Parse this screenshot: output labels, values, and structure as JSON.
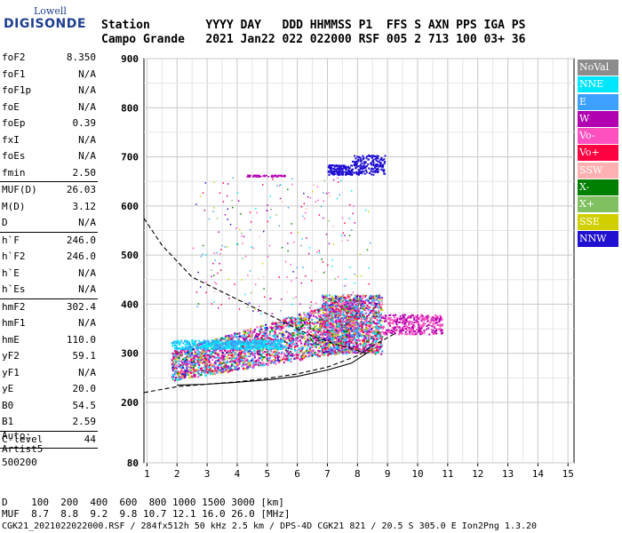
{
  "logo": {
    "line1": "Lowell",
    "line2": "DIGISONDE"
  },
  "header": {
    "labels": "Station        YYYY DAY   DDD HHMMSS P1  FFS S AXN PPS IGA PS",
    "values": "Campo Grande   2021 Jan22 022 022000 RSF 005 2 713 100 03+ 36"
  },
  "params": [
    {
      "label": "foF2",
      "value": "8.350"
    },
    {
      "label": "foF1",
      "value": "N/A"
    },
    {
      "label": "foF1p",
      "value": "N/A"
    },
    {
      "label": "foE",
      "value": "N/A"
    },
    {
      "label": "foEp",
      "value": "0.39"
    },
    {
      "label": "fxI",
      "value": "N/A"
    },
    {
      "label": "foEs",
      "value": "N/A"
    },
    {
      "label": "fmin",
      "value": "2.50",
      "sep_after": true
    },
    {
      "label": "MUF(D)",
      "value": "26.03"
    },
    {
      "label": "M(D)",
      "value": "3.12"
    },
    {
      "label": "D",
      "value": "N/A",
      "sep_after": true
    },
    {
      "label": "h`F",
      "value": "246.0"
    },
    {
      "label": "h`F2",
      "value": "246.0"
    },
    {
      "label": "h`E",
      "value": "N/A"
    },
    {
      "label": "h`Es",
      "value": "N/A",
      "sep_after": true
    },
    {
      "label": "hmF2",
      "value": "302.4"
    },
    {
      "label": "hmF1",
      "value": "N/A"
    },
    {
      "label": "hmE",
      "value": "110.0"
    },
    {
      "label": "yF2",
      "value": "59.1"
    },
    {
      "label": "yF1",
      "value": "N/A"
    },
    {
      "label": "yE",
      "value": "20.0"
    },
    {
      "label": "B0",
      "value": "54.5"
    },
    {
      "label": "B1",
      "value": "2.59",
      "sep_after": true
    },
    {
      "label": "C-level",
      "value": "44",
      "sep_after": true
    }
  ],
  "auto": [
    "Auto:",
    "Artist5",
    "500200"
  ],
  "legend": [
    {
      "label": "NoVal",
      "color": "#8c8c8c"
    },
    {
      "label": "NNE",
      "color": "#00e6ff"
    },
    {
      "label": "E",
      "color": "#3ca0ff"
    },
    {
      "label": "W",
      "color": "#b000b0"
    },
    {
      "label": "Vo-",
      "color": "#ff50c0"
    },
    {
      "label": "Vo+",
      "color": "#ff0040"
    },
    {
      "label": "SSW",
      "color": "#ffb0b0"
    },
    {
      "label": "X-",
      "color": "#008000"
    },
    {
      "label": "X+",
      "color": "#80c060"
    },
    {
      "label": "SSE",
      "color": "#d0d000"
    },
    {
      "label": "NNW",
      "color": "#2010d0"
    }
  ],
  "footer": {
    "d_line": "D    100  200  400  600  800 1000 1500 3000 [km]",
    "muf_line": "MUF  8.7  8.8  9.2  9.8 10.7 12.1 16.0 26.0 [MHz]",
    "info_line": "CGK21_2021022022000.RSF / 284fx512h 50 kHz 2.5 km / DPS-4D CGK21 821 / 20.5 S 305.0 E Ion2Png 1.3.20"
  },
  "chart_data": {
    "type": "scatter",
    "xlim": [
      0.9,
      15.2
    ],
    "ylim": [
      80,
      900
    ],
    "x_ticks": [
      "1",
      "2",
      "3",
      "4",
      "5",
      "6",
      "7",
      "8",
      "9",
      "10",
      "11",
      "12",
      "13",
      "14",
      "15"
    ],
    "y_ticks": [
      "900",
      "800",
      "700",
      "600",
      "500",
      "400",
      "300",
      "200",
      "80"
    ],
    "grid": true,
    "dashed_curve": {
      "x": [
        0.9,
        1.5,
        2.5,
        3.5,
        4.5,
        5.5,
        6.5,
        7.3,
        7.8,
        8.2,
        8.35
      ],
      "y": [
        575,
        520,
        455,
        425,
        395,
        365,
        335,
        318,
        310,
        302,
        300
      ]
    },
    "dashed_lower": {
      "x": [
        0.9,
        2,
        3,
        4,
        5,
        6,
        7,
        8,
        8.5,
        9.3
      ],
      "y": [
        220,
        232,
        237,
        242,
        249,
        258,
        272,
        295,
        315,
        342
      ]
    },
    "solid_profile": {
      "x": [
        2.0,
        3,
        4,
        5,
        6,
        7,
        7.8,
        8.35
      ],
      "y": [
        235,
        237,
        241,
        246,
        253,
        266,
        280,
        302
      ]
    },
    "clusters": [
      {
        "name": "F-trace",
        "x_range": [
          1.8,
          8.0
        ],
        "y_range": [
          240,
          340
        ]
      },
      {
        "name": "F2-cusp",
        "x_range": [
          6.8,
          8.8
        ],
        "y_range": [
          300,
          420
        ]
      },
      {
        "name": "F2-ext",
        "x_range": [
          8.8,
          10.8
        ],
        "y_range": [
          335,
          385
        ]
      },
      {
        "name": "E-band",
        "x_range": [
          1.8,
          5.5
        ],
        "y_range": [
          305,
          330
        ]
      },
      {
        "name": "NNW-700",
        "x_range": [
          7.0,
          8.9
        ],
        "y_range": [
          665,
          705
        ]
      },
      {
        "name": "sparse-high",
        "x_range": [
          2.5,
          8.5
        ],
        "y_range": [
          380,
          660
        ]
      }
    ]
  }
}
